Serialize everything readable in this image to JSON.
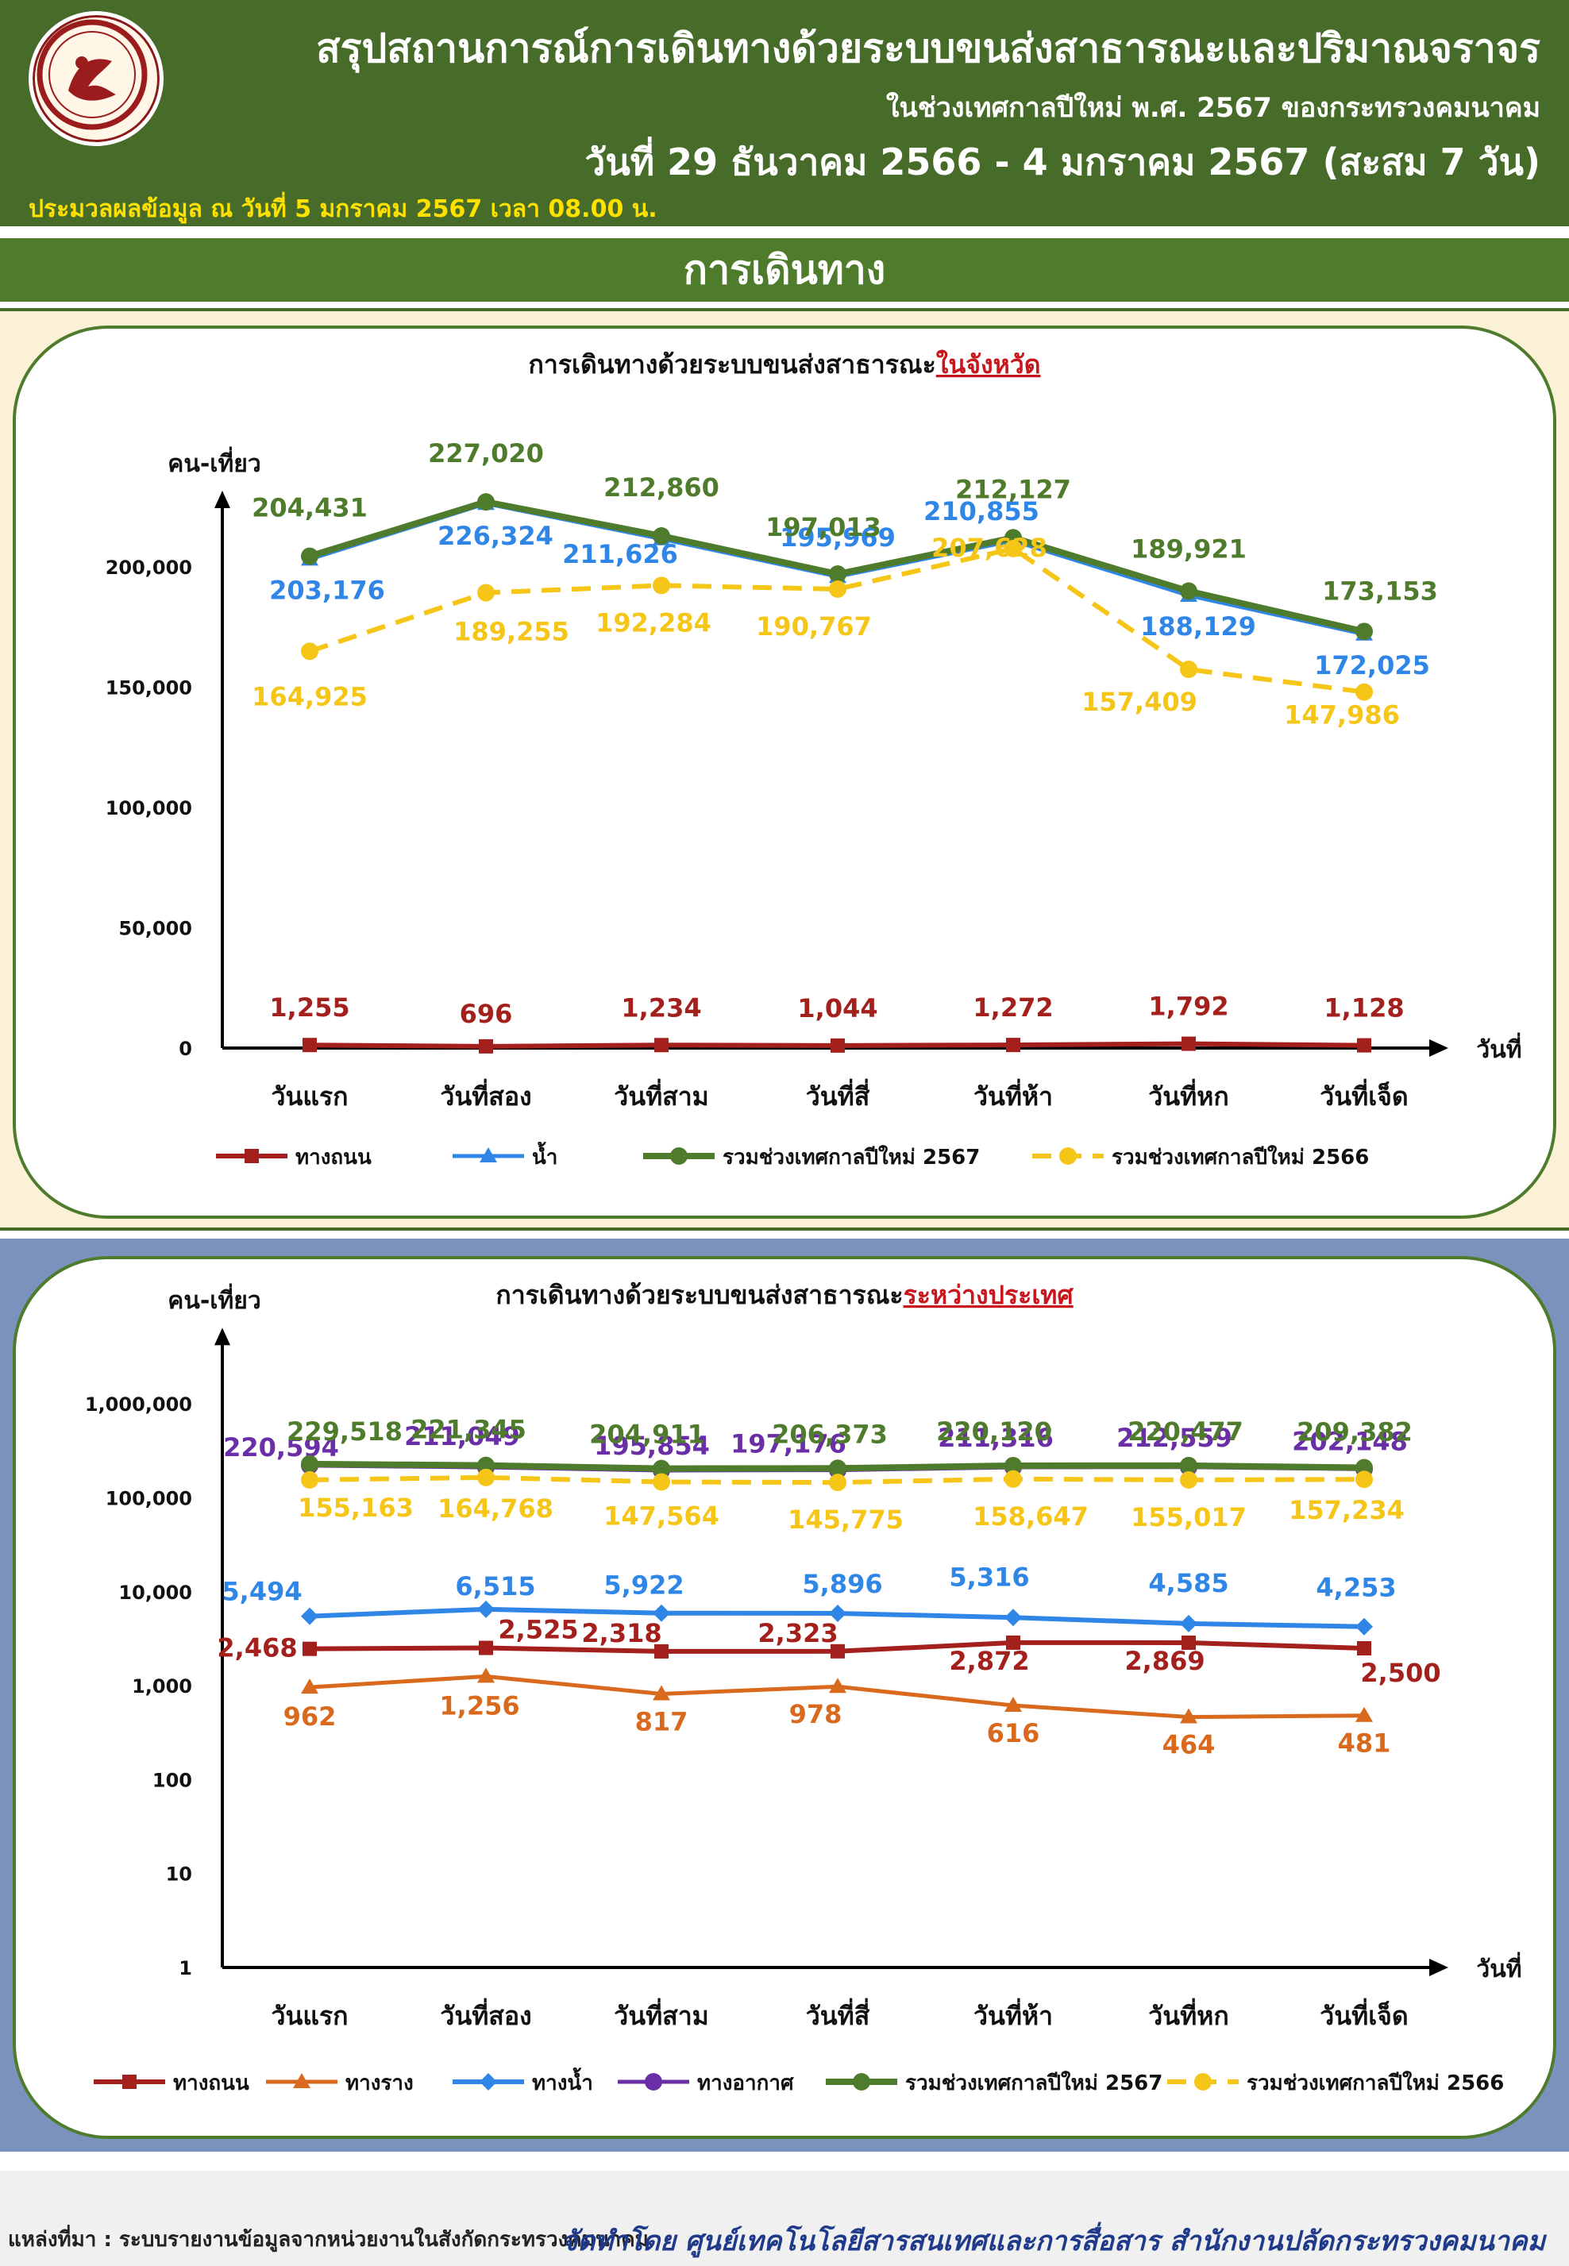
{
  "header": {
    "title": "สรุปสถานการณ์การเดินทางด้วยระบบขนส่งสาธารณะและปริมาณจราจร",
    "subtitle": "ในช่วงเทศกาลปีใหม่ พ.ศ. 2567 ของกระทรวงคมนาคม",
    "date_range": "วันที่ 29 ธันวาคม 2566 - 4 มกราคม 2567 (สะสม 7 วัน)",
    "processed": "ประมวลผลข้อมูล ณ วันที่ 5 มกราคม 2567 เวลา 08.00 น."
  },
  "section_title": "การเดินทาง",
  "footer": {
    "source": "แหล่งที่มา : ระบบรายงานข้อมูลจากหน่วยงานในสังกัดกระทรวงคมนาคม",
    "credit": "จัดทำโดย ศูนย์เทคโนโลยีสารสนเทศและการสื่อสาร สำนักงานปลัดกระทรวงคมนาคม"
  },
  "colors": {
    "header_bg": "#476b28",
    "road": "#a3201c",
    "rail": "#d9691c",
    "water": "#2f86e6",
    "air": "#6a2ea6",
    "total_2567": "#4f7c2c",
    "total_2566": "#f5c518"
  },
  "chart_data": [
    {
      "type": "line",
      "title_prefix": "การเดินทางด้วยระบบขนส่งสาธารณะ",
      "title_highlight": "ในจังหวัด",
      "ylabel": "คน-เที่ยว",
      "xlabel": "วันที่",
      "categories": [
        "วันแรก",
        "วันที่สอง",
        "วันที่สาม",
        "วันที่สี่",
        "วันที่ห้า",
        "วันที่หก",
        "วันที่เจ็ด"
      ],
      "yticks": [
        "0",
        "50,000",
        "100,000",
        "150,000",
        "200,000"
      ],
      "ylim": [
        0,
        200000
      ],
      "scale": "linear",
      "grid": false,
      "legend": "bottom",
      "series": [
        {
          "name": "ทางถนน",
          "values": [
            1255,
            696,
            1234,
            1044,
            1272,
            1792,
            1128
          ],
          "labels": [
            "1,255",
            "696",
            "1,234",
            "1,044",
            "1,272",
            "1,792",
            "1,128"
          ]
        },
        {
          "name": "น้ำ",
          "values": [
            203176,
            226324,
            211626,
            195969,
            210855,
            188129,
            172025
          ],
          "labels": [
            "203,176",
            "226,324",
            "211,626",
            "195,969",
            "210,855",
            "188,129",
            "172,025"
          ]
        },
        {
          "name": "รวมช่วงเทศกาลปีใหม่ 2567",
          "values": [
            204431,
            227020,
            212860,
            197013,
            212127,
            189921,
            173153
          ],
          "labels": [
            "204,431",
            "227,020",
            "212,860",
            "197,013",
            "212,127",
            "189,921",
            "173,153"
          ]
        },
        {
          "name": "รวมช่วงเทศกาลปีใหม่ 2566",
          "values": [
            164925,
            189255,
            192284,
            190767,
            207628,
            157409,
            147986
          ],
          "labels": [
            "164,925",
            "189,255",
            "192,284",
            "190,767",
            "207,628",
            "157,409",
            "147,986"
          ]
        }
      ]
    },
    {
      "type": "line",
      "title_prefix": "การเดินทางด้วยระบบขนส่งสาธารณะ",
      "title_highlight": "ระหว่างประเทศ",
      "ylabel": "คน-เที่ยว",
      "xlabel": "วันที่",
      "categories": [
        "วันแรก",
        "วันที่สอง",
        "วันที่สาม",
        "วันที่สี่",
        "วันที่ห้า",
        "วันที่หก",
        "วันที่เจ็ด"
      ],
      "yticks": [
        "1",
        "10",
        "100",
        "1,000",
        "10,000",
        "100,000",
        "1,000,000"
      ],
      "ylim": [
        1,
        1000000
      ],
      "scale": "log",
      "grid": false,
      "legend": "bottom",
      "series": [
        {
          "name": "ทางถนน",
          "values": [
            2468,
            2525,
            2318,
            2323,
            2872,
            2869,
            2500
          ],
          "labels": [
            "2,468",
            "2,525",
            "2,318",
            "2,323",
            "2,872",
            "2,869",
            "2,500"
          ]
        },
        {
          "name": "ทางราง",
          "values": [
            962,
            1256,
            817,
            978,
            616,
            464,
            481
          ],
          "labels": [
            "962",
            "1,256",
            "817",
            "978",
            "616",
            "464",
            "481"
          ]
        },
        {
          "name": "ทางน้ำ",
          "values": [
            5494,
            6515,
            5922,
            5896,
            5316,
            4585,
            4253
          ],
          "labels": [
            "5,494",
            "6,515",
            "5,922",
            "5,896",
            "5,316",
            "4,585",
            "4,253"
          ]
        },
        {
          "name": "ทางอากาศ",
          "values": [
            220594,
            211049,
            195854,
            197176,
            211316,
            212559,
            202148
          ],
          "labels": [
            "220,594",
            "211,049",
            "195,854",
            "197,176",
            "211,316",
            "212,559",
            "202,148"
          ]
        },
        {
          "name": "รวมช่วงเทศกาลปีใหม่ 2567",
          "values": [
            229518,
            221345,
            204911,
            206373,
            220120,
            220477,
            209382
          ],
          "labels": [
            "229,518",
            "221,345",
            "204,911",
            "206,373",
            "220,120",
            "220,477",
            "209,382"
          ]
        },
        {
          "name": "รวมช่วงเทศกาลปีใหม่ 2566",
          "values": [
            155163,
            164768,
            147564,
            145775,
            158647,
            155017,
            157234
          ],
          "labels": [
            "155,163",
            "164,768",
            "147,564",
            "145,775",
            "158,647",
            "155,017",
            "157,234"
          ]
        }
      ]
    }
  ]
}
